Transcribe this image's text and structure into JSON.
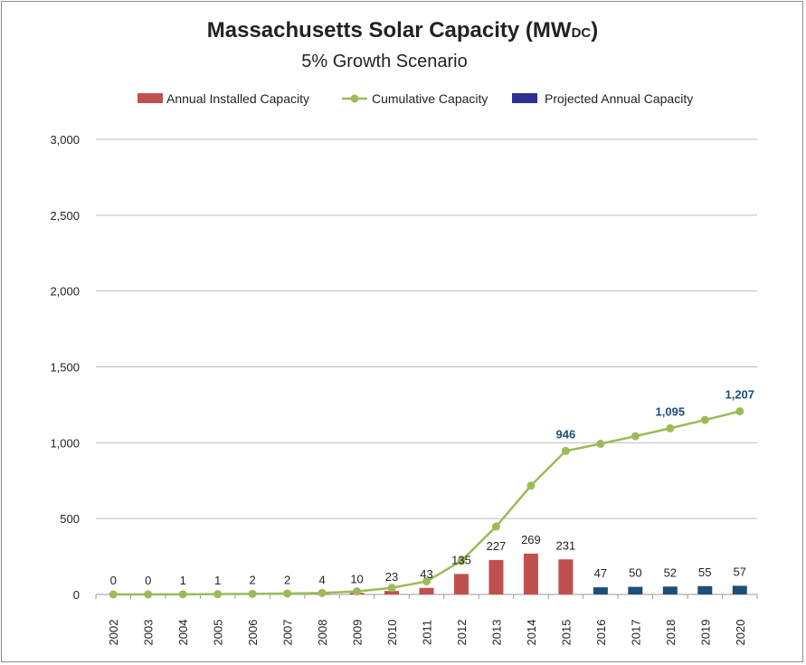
{
  "chart_data": {
    "type": "bar+line",
    "title": "Massachusetts Solar Capacity (MW",
    "title_subscript": "DC",
    "title_close": ")",
    "subtitle": "5% Growth Scenario",
    "legend": {
      "placement": "top",
      "entries": [
        "Annual Installed Capacity",
        "Cumulative Capacity",
        "Projected Annual Capacity"
      ]
    },
    "ylim": [
      0,
      3000
    ],
    "yticks": [
      0,
      500,
      1000,
      1500,
      2000,
      2500,
      3000
    ],
    "ytick_labels": [
      "0",
      "500",
      "1,000",
      "1,500",
      "2,000",
      "2,500",
      "3,000"
    ],
    "grid": "horizontal",
    "categories": [
      "2002",
      "2003",
      "2004",
      "2005",
      "2006",
      "2007",
      "2008",
      "2009",
      "2010",
      "2011",
      "2012",
      "2013",
      "2014",
      "2015",
      "2016",
      "2017",
      "2018",
      "2019",
      "2020"
    ],
    "series": [
      {
        "name": "Annual Installed Capacity",
        "kind": "bar",
        "color": "#C0504D",
        "values": [
          0,
          0,
          1,
          1,
          2,
          2,
          4,
          10,
          23,
          43,
          135,
          227,
          269,
          231,
          null,
          null,
          null,
          null,
          null
        ]
      },
      {
        "name": "Projected Annual Capacity",
        "kind": "bar",
        "color": "#1F4E79",
        "values": [
          null,
          null,
          null,
          null,
          null,
          null,
          null,
          null,
          null,
          null,
          null,
          null,
          null,
          null,
          47,
          50,
          52,
          55,
          57
        ]
      },
      {
        "name": "Cumulative Capacity",
        "kind": "line",
        "color": "#9BBB59",
        "values": [
          0,
          0,
          1,
          2,
          4,
          6,
          10,
          20,
          43,
          86,
          221,
          448,
          717,
          946,
          993,
          1043,
          1095,
          1150,
          1207
        ]
      }
    ],
    "bar_labels": [
      "0",
      "0",
      "1",
      "1",
      "2",
      "2",
      "4",
      "10",
      "23",
      "43",
      "135",
      "227",
      "269",
      "231",
      "47",
      "50",
      "52",
      "55",
      "57"
    ],
    "line_labels": [
      {
        "category": "2015",
        "label": "946"
      },
      {
        "category": "2018",
        "label": "1,095"
      },
      {
        "category": "2020",
        "label": "1,207"
      }
    ],
    "line_label_color": "#1F4E79",
    "legend_projected_color": "#2E3192"
  }
}
